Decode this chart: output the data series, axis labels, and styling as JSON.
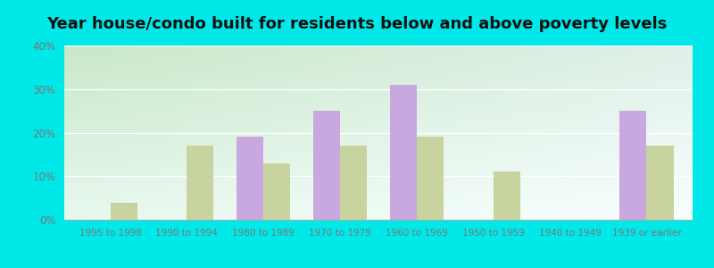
{
  "title": "Year house/condo built for residents below and above poverty levels",
  "categories": [
    "1995 to 1998",
    "1990 to 1994",
    "1980 to 1989",
    "1970 to 1979",
    "1960 to 1969",
    "1950 to 1959",
    "1940 to 1949",
    "1939 or earlier"
  ],
  "below_poverty": [
    0,
    0,
    19,
    25,
    31,
    0,
    0,
    25
  ],
  "above_poverty": [
    4,
    17,
    13,
    17,
    19,
    11,
    0,
    17
  ],
  "below_color": "#c9a8e0",
  "above_color": "#c8d4a0",
  "ylim": [
    0,
    40
  ],
  "yticks": [
    0,
    10,
    20,
    30,
    40
  ],
  "outer_bg": "#00e8e8",
  "bar_width": 0.35,
  "title_fontsize": 13,
  "tick_color": "#888888",
  "label_color": "#777777",
  "grad_top": "#c8e8c8",
  "grad_bottom": "#f0fff0",
  "grad_right": "#e8f8ff"
}
